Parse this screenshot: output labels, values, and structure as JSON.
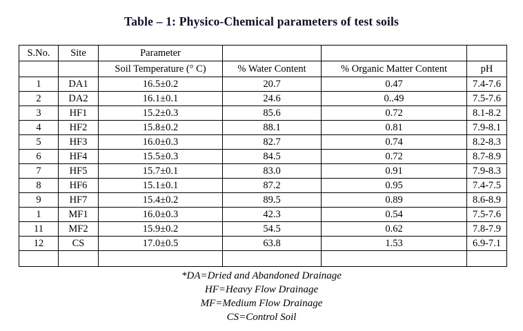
{
  "title": "Table – 1: Physico-Chemical parameters of test soils",
  "table": {
    "header_row1": [
      "S.No.",
      "Site",
      "Parameter",
      "",
      "",
      ""
    ],
    "header_row2": [
      "",
      "",
      "Soil Temperature (° C)",
      "% Water Content",
      "% Organic Matter Content",
      "pH"
    ],
    "rows": [
      [
        "1",
        "DA1",
        "16.5±0.2",
        "20.7",
        "0.47",
        "7.4-7.6"
      ],
      [
        "2",
        "DA2",
        "16.1±0.1",
        "24.6",
        "0..49",
        "7.5-7.6"
      ],
      [
        "3",
        "HF1",
        "15.2±0.3",
        "85.6",
        "0.72",
        "8.1-8.2"
      ],
      [
        "4",
        "HF2",
        "15.8±0.2",
        "88.1",
        "0.81",
        "7.9-8.1"
      ],
      [
        "5",
        "HF3",
        "16.0±0.3",
        "82.7",
        "0.74",
        "8.2-8.3"
      ],
      [
        "6",
        "HF4",
        "15.5±0.3",
        "84.5",
        "0.72",
        "8.7-8.9"
      ],
      [
        "7",
        "HF5",
        "15.7±0.1",
        "83.0",
        "0.91",
        "7.9-8.3"
      ],
      [
        "8",
        "HF6",
        "15.1±0.1",
        "87.2",
        "0.95",
        "7.4-7.5"
      ],
      [
        "9",
        "HF7",
        "15.4±0.2",
        "89.5",
        "0.89",
        "8.6-8.9"
      ],
      [
        "1",
        "MF1",
        "16.0±0.3",
        "42.3",
        "0.54",
        "7.5-7.6"
      ],
      [
        "11",
        "MF2",
        "15.9±0.2",
        "54.5",
        "0.62",
        "7.8-7.9"
      ],
      [
        "12",
        "CS",
        "17.0±0.5",
        "63.8",
        "1.53",
        "6.9-7.1"
      ]
    ],
    "empty_row": [
      "",
      "",
      "",
      "",
      "",
      ""
    ]
  },
  "footnotes": [
    "*DA=Dried and Abandoned Drainage",
    "HF=Heavy Flow Drainage",
    "MF=Medium Flow Drainage",
    "CS=Control Soil"
  ],
  "colors": {
    "text": "#000000",
    "border": "#000000",
    "background": "#ffffff"
  }
}
